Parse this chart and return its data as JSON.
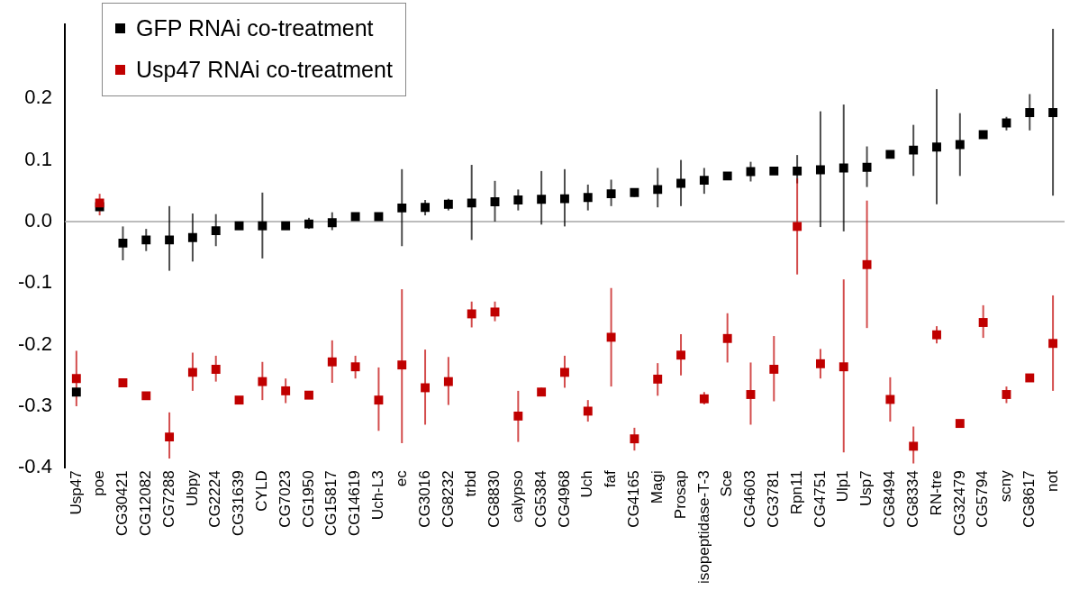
{
  "chart_data": {
    "type": "scatter",
    "marker": "square",
    "legend": "top left",
    "grid": false,
    "categories": [
      "Usp47",
      "poe",
      "CG30421",
      "CG12082",
      "CG7288",
      "Ubpy",
      "CG2224",
      "CG31639",
      "CYLD",
      "CG7023",
      "CG1950",
      "CG15817",
      "CG14619",
      "Uch-L3",
      "ec",
      "CG3016",
      "CG8232",
      "trbd",
      "CG8830",
      "calypso",
      "CG5384",
      "CG4968",
      "Uch",
      "faf",
      "CG4165",
      "Magi",
      "Prosap",
      "isopeptidase-T-3",
      "Sce",
      "CG4603",
      "CG3781",
      "Rpn11",
      "CG4751",
      "Ulp1",
      "Usp7",
      "CG8494",
      "CG8334",
      "RN-tre",
      "CG32479",
      "CG5794",
      "scny",
      "CG8617",
      "not"
    ],
    "ylim": [
      -0.4,
      0.32
    ],
    "yticks": [
      -0.4,
      -0.3,
      -0.2,
      -0.1,
      {
        "value": 0,
        "label": "0.0"
      },
      0.1,
      0.2
    ],
    "ref_lines": [
      {
        "axis": "y",
        "value": 0,
        "color": "#a6a6a6"
      }
    ],
    "series": [
      {
        "name": "GFP RNAi co-treatment",
        "color": "#000000",
        "values": [
          -0.277,
          0.024,
          -0.035,
          -0.03,
          -0.03,
          -0.026,
          -0.015,
          -0.007,
          -0.007,
          -0.007,
          -0.004,
          -0.002,
          0.008,
          0.008,
          0.022,
          0.023,
          0.028,
          0.03,
          0.032,
          0.035,
          0.036,
          0.037,
          0.039,
          0.045,
          0.047,
          0.052,
          0.062,
          0.067,
          0.074,
          0.081,
          0.082,
          0.082,
          0.084,
          0.087,
          0.088,
          0.109,
          0.116,
          0.121,
          0.125,
          0.141,
          0.16,
          0.177,
          0.177
        ],
        "errors": [
          null,
          null,
          [
            -0.063,
            -0.008
          ],
          [
            -0.048,
            -0.012
          ],
          [
            -0.08,
            0.025
          ],
          [
            -0.065,
            0.013
          ],
          [
            -0.04,
            0.012
          ],
          null,
          [
            -0.06,
            0.047
          ],
          null,
          [
            -0.012,
            0.006
          ],
          [
            -0.014,
            0.015
          ],
          null,
          null,
          [
            -0.04,
            0.085
          ],
          [
            0.01,
            0.035
          ],
          [
            0.018,
            0.037
          ],
          [
            -0.03,
            0.092
          ],
          [
            0,
            0.066
          ],
          [
            0.018,
            0.052
          ],
          [
            -0.005,
            0.082
          ],
          [
            -0.008,
            0.085
          ],
          [
            0.018,
            0.06
          ],
          [
            0.025,
            0.068
          ],
          [
            0.04,
            0.052
          ],
          [
            0.023,
            0.087
          ],
          [
            0.025,
            0.1
          ],
          [
            0.045,
            0.087
          ],
          null,
          [
            0.065,
            0.097
          ],
          [
            0.076,
            0.088
          ],
          [
            0.062,
            0.108
          ],
          [
            -0.009,
            0.179
          ],
          [
            -0.016,
            0.19
          ],
          [
            0.056,
            0.122
          ],
          null,
          [
            0.074,
            0.157
          ],
          [
            0.028,
            0.215
          ],
          [
            0.074,
            0.176
          ],
          null,
          [
            0.148,
            0.17
          ],
          [
            0.148,
            0.207
          ],
          [
            0.042,
            0.313
          ]
        ]
      },
      {
        "name": "Usp47 RNAi co-treatment",
        "color": "#c00000",
        "values": [
          -0.255,
          0.03,
          -0.262,
          -0.283,
          -0.35,
          -0.245,
          -0.24,
          -0.29,
          -0.26,
          -0.275,
          -0.282,
          -0.228,
          -0.236,
          -0.29,
          -0.233,
          -0.27,
          -0.26,
          -0.15,
          -0.147,
          -0.316,
          -0.277,
          -0.245,
          -0.308,
          -0.188,
          -0.353,
          -0.256,
          -0.217,
          -0.288,
          -0.19,
          -0.281,
          -0.24,
          -0.008,
          -0.231,
          -0.236,
          -0.07,
          -0.289,
          -0.365,
          -0.184,
          -0.328,
          -0.164,
          -0.281,
          -0.254,
          -0.198
        ],
        "errors": [
          [
            -0.3,
            -0.21
          ],
          [
            0.01,
            0.045
          ],
          null,
          null,
          [
            -0.385,
            -0.31
          ],
          [
            -0.275,
            -0.213
          ],
          [
            -0.26,
            -0.218
          ],
          null,
          [
            -0.29,
            -0.228
          ],
          [
            -0.295,
            -0.255
          ],
          null,
          [
            -0.262,
            -0.193
          ],
          [
            -0.255,
            -0.218
          ],
          [
            -0.34,
            -0.237
          ],
          [
            -0.36,
            -0.11
          ],
          [
            -0.33,
            -0.208
          ],
          [
            -0.298,
            -0.22
          ],
          [
            -0.172,
            -0.13
          ],
          [
            -0.162,
            -0.13
          ],
          [
            -0.358,
            -0.275
          ],
          [
            -0.283,
            -0.27
          ],
          [
            -0.27,
            -0.218
          ],
          [
            -0.325,
            -0.29
          ],
          [
            -0.268,
            -0.108
          ],
          [
            -0.372,
            -0.335
          ],
          [
            -0.283,
            -0.23
          ],
          [
            -0.25,
            -0.183
          ],
          [
            -0.297,
            -0.277
          ],
          [
            -0.229,
            -0.149
          ],
          [
            -0.33,
            -0.229
          ],
          [
            -0.292,
            -0.186
          ],
          [
            -0.086,
            0.07
          ],
          [
            -0.255,
            -0.207
          ],
          [
            -0.375,
            -0.094
          ],
          [
            -0.173,
            0.034
          ],
          [
            -0.325,
            -0.253
          ],
          [
            -0.393,
            -0.333
          ],
          [
            -0.198,
            -0.17
          ],
          null,
          [
            -0.189,
            -0.136
          ],
          [
            -0.295,
            -0.268
          ],
          null,
          [
            -0.275,
            -0.12
          ]
        ]
      }
    ]
  }
}
